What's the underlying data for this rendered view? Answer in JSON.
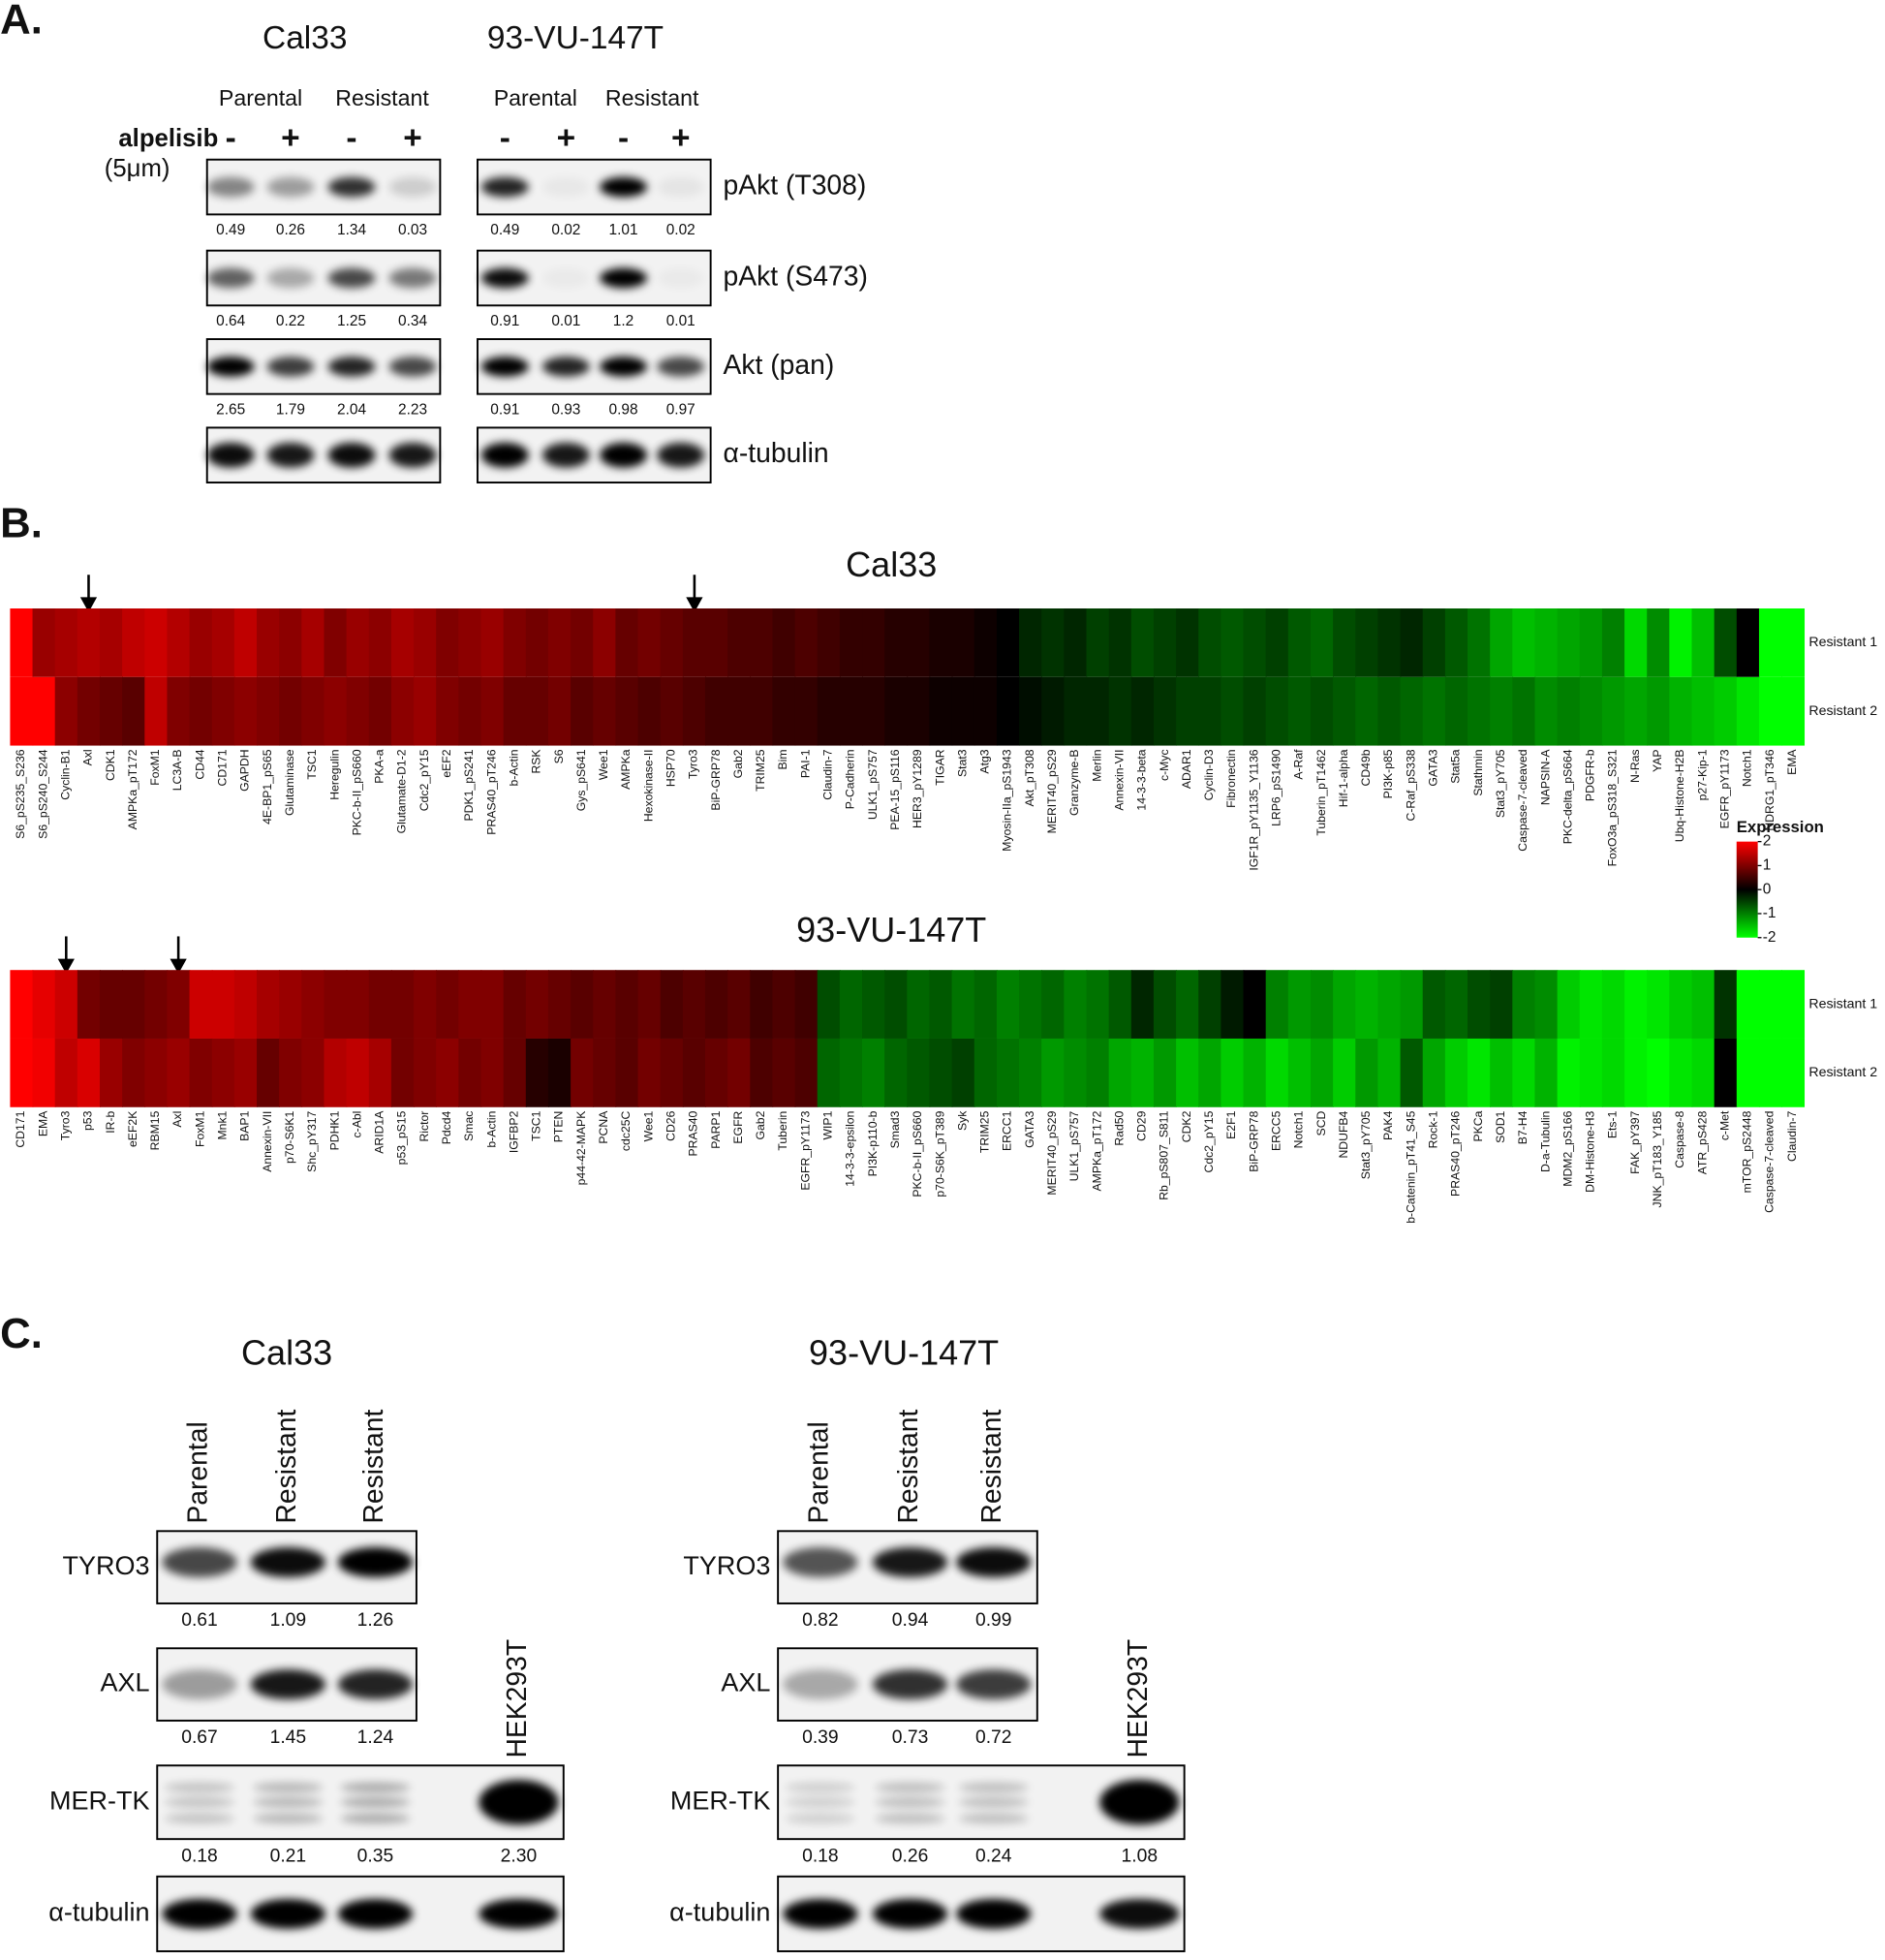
{
  "panel_a": {
    "label": "A.",
    "treatment": "alpelisib",
    "dose": "(5μm)",
    "proteins": [
      "pAkt (T308)",
      "pAkt (S473)",
      "Akt (pan)",
      "α-tubulin"
    ],
    "cell_lines": [
      {
        "name": "Cal33",
        "groups": [
          "Parental",
          "Resistant"
        ],
        "signs": [
          "-",
          "+",
          "-",
          "+"
        ],
        "quantification": [
          [
            "0.49",
            "0.26",
            "1.34",
            "0.03"
          ],
          [
            "0.64",
            "0.22",
            "1.25",
            "0.34"
          ],
          [
            "2.65",
            "1.79",
            "2.04",
            "2.23"
          ]
        ]
      },
      {
        "name": "93-VU-147T",
        "groups": [
          "Parental",
          "Resistant"
        ],
        "signs": [
          "-",
          "+",
          "-",
          "+"
        ],
        "quantification": [
          [
            "0.49",
            "0.02",
            "1.01",
            "0.02"
          ],
          [
            "0.91",
            "0.01",
            "1.2",
            "0.01"
          ],
          [
            "0.91",
            "0.93",
            "0.98",
            "0.97"
          ]
        ]
      }
    ]
  },
  "panel_b": {
    "label": "B.",
    "legend": {
      "title": "Expression",
      "lim": [
        -2,
        2
      ],
      "ticks": [
        2,
        1,
        0,
        -1,
        -2
      ]
    },
    "heatmaps": [
      {
        "title": "Cal33",
        "row_labels": [
          "Resistant 1",
          "Resistant 2"
        ],
        "columns": [
          "S6_pS235_S236",
          "S6_pS240_S244",
          "Cyclin-B1",
          "Axl",
          "CDK1",
          "AMPKa_pT172",
          "FoxM1",
          "LC3A-B",
          "CD44",
          "CD171",
          "GAPDH",
          "4E-BP1_pS65",
          "Glutaminase",
          "TSC1",
          "Heregulin",
          "PKC-b-II_pS660",
          "PKA-a",
          "Glutamate-D1-2",
          "Cdc2_pY15",
          "eEF2",
          "PDK1_pS241",
          "PRAS40_pT246",
          "b-Actin",
          "RSK",
          "S6",
          "Gys_pS641",
          "Wee1",
          "AMPKa",
          "Hexokinase-II",
          "HSP70",
          "Tyro3",
          "BiP-GRP78",
          "Gab2",
          "TRIM25",
          "Bim",
          "PAI-1",
          "Claudin-7",
          "P-Cadherin",
          "ULK1_pS757",
          "PEA-15_pS116",
          "HER3_pY1289",
          "TIGAR",
          "Stat3",
          "Atg3",
          "Myosin-IIa_pS1943",
          "Akt_pT308",
          "MERIT40_pS29",
          "Granzyme-B",
          "Merlin",
          "Annexin-VII",
          "14-3-3-beta",
          "c-Myc",
          "ADAR1",
          "Cyclin-D3",
          "Fibronectin",
          "IGF1R_pY1135_Y1136",
          "LRP6_pS1490",
          "A-Raf",
          "Tuberin_pT1462",
          "Hif-1-alpha",
          "CD49b",
          "PI3K-p85",
          "C-Raf_pS338",
          "GATA3",
          "Stat5a",
          "Stathmin",
          "Stat3_pY705",
          "Caspase-7-cleaved",
          "NAPSIN-A",
          "PKC-delta_pS664",
          "PDGFR-b",
          "FoxO3a_pS318_S321",
          "N-Ras",
          "YAP",
          "Ubq-Histone-H2B",
          "p27-Kip-1",
          "EGFR_pY1173",
          "Notch1",
          "NDRG1_pT346",
          "EMA"
        ],
        "values": [
          [
            2.0,
            1.2,
            1.3,
            1.4,
            1.3,
            1.5,
            1.6,
            1.4,
            1.2,
            1.3,
            1.5,
            1.2,
            1.1,
            1.3,
            1.0,
            1.2,
            1.1,
            1.3,
            1.2,
            1.0,
            1.1,
            1.2,
            1.0,
            0.9,
            1.0,
            0.9,
            1.1,
            0.8,
            0.9,
            0.8,
            0.7,
            0.7,
            0.6,
            0.6,
            0.5,
            0.6,
            0.5,
            0.4,
            0.4,
            0.3,
            0.3,
            0.2,
            0.2,
            0.1,
            0.0,
            -0.3,
            -0.4,
            -0.3,
            -0.5,
            -0.4,
            -0.6,
            -0.5,
            -0.4,
            -0.6,
            -0.7,
            -0.6,
            -0.5,
            -0.7,
            -0.8,
            -0.6,
            -0.5,
            -0.4,
            -0.3,
            -0.5,
            -0.7,
            -0.9,
            -1.3,
            -1.5,
            -1.4,
            -1.3,
            -1.2,
            -1.0,
            -1.7,
            -1.1,
            -1.9,
            -1.5,
            -0.6,
            0.0,
            -2.0,
            -2.0
          ],
          [
            2.0,
            2.0,
            1.1,
            0.9,
            0.8,
            0.7,
            1.5,
            1.0,
            0.9,
            1.0,
            1.1,
            1.0,
            0.9,
            1.0,
            1.1,
            1.0,
            0.9,
            1.1,
            1.2,
            1.0,
            0.9,
            1.0,
            0.8,
            0.8,
            0.9,
            0.7,
            0.8,
            0.7,
            0.6,
            0.7,
            0.6,
            0.5,
            0.5,
            0.5,
            0.4,
            0.4,
            0.3,
            0.3,
            0.3,
            0.2,
            0.2,
            0.1,
            0.1,
            0.1,
            0.0,
            -0.1,
            -0.2,
            -0.3,
            -0.3,
            -0.4,
            -0.3,
            -0.4,
            -0.5,
            -0.5,
            -0.6,
            -0.5,
            -0.6,
            -0.7,
            -0.6,
            -0.7,
            -0.8,
            -0.7,
            -0.8,
            -0.9,
            -0.8,
            -0.9,
            -1.0,
            -0.9,
            -1.1,
            -1.0,
            -1.1,
            -1.2,
            -1.3,
            -1.2,
            -1.4,
            -1.5,
            -1.6,
            -1.8,
            -2.0,
            -2.0
          ]
        ]
      },
      {
        "title": "93-VU-147T",
        "row_labels": [
          "Resistant 1",
          "Resistant 2"
        ],
        "columns": [
          "CD171",
          "EMA",
          "Tyro3",
          "p53",
          "IR-b",
          "eEF2K",
          "RBM15",
          "Axl",
          "FoxM1",
          "Mnk1",
          "BAP1",
          "Annexin-VII",
          "p70-S6K1",
          "Shc_pY317",
          "PDHK1",
          "c-Abl",
          "ARID1A",
          "p53_pS15",
          "Rictor",
          "Pdcd4",
          "Smac",
          "b-Actin",
          "IGFBP2",
          "TSC1",
          "PTEN",
          "p44-42-MAPK",
          "PCNA",
          "cdc25C",
          "Wee1",
          "CD26",
          "PRAS40",
          "PARP1",
          "EGFR",
          "Gab2",
          "Tuberin",
          "EGFR_pY1173",
          "WIP1",
          "14-3-3-epsilon",
          "PI3K-p110-b",
          "Smad3",
          "PKC-b-II_pS660",
          "p70-S6K_pT389",
          "Syk",
          "TRIM25",
          "ERCC1",
          "GATA3",
          "MERIT40_pS29",
          "ULK1_pS757",
          "AMPKa_pT172",
          "Rad50",
          "CD29",
          "Rb_pS807_S811",
          "CDK2",
          "Cdc2_pY15",
          "E2F1",
          "BiP-GRP78",
          "ERCC5",
          "Notch1",
          "SCD",
          "NDUFB4",
          "Stat3_pY705",
          "PAK4",
          "b-Catenin_pT41_S45",
          "Rock-1",
          "PRAS40_pT246",
          "PKCa",
          "SOD1",
          "B7-H4",
          "D-a-Tubulin",
          "MDM2_pS166",
          "DM-Histone-H3",
          "Ets-1",
          "FAK_pY397",
          "JNK_pT183_Y185",
          "Caspase-8",
          "ATR_pS428",
          "c-Met",
          "mTOR_pS2448",
          "Caspase-7-cleaved",
          "Claudin-7"
        ],
        "values": [
          [
            2.0,
            1.8,
            1.6,
            0.9,
            0.8,
            0.8,
            0.9,
            1.0,
            1.6,
            1.6,
            1.5,
            1.3,
            1.2,
            1.1,
            1.0,
            1.0,
            0.9,
            0.9,
            1.0,
            0.9,
            1.0,
            1.0,
            0.8,
            0.9,
            0.8,
            0.7,
            0.8,
            0.7,
            0.8,
            0.6,
            0.7,
            0.6,
            0.7,
            0.5,
            0.6,
            0.5,
            -0.6,
            -0.8,
            -0.7,
            -0.6,
            -0.8,
            -0.7,
            -0.9,
            -0.8,
            -1.0,
            -0.9,
            -0.8,
            -1.0,
            -0.9,
            -0.7,
            -0.3,
            -0.6,
            -0.8,
            -0.5,
            -0.2,
            0.0,
            -1.0,
            -1.2,
            -1.1,
            -1.3,
            -1.4,
            -1.3,
            -1.2,
            -0.7,
            -0.8,
            -0.6,
            -0.5,
            -1.0,
            -1.1,
            -1.6,
            -1.8,
            -1.7,
            -1.9,
            -1.8,
            -1.6,
            -1.5,
            -0.4,
            -2.0,
            -2.0,
            -2.0
          ],
          [
            2.0,
            1.9,
            1.5,
            1.7,
            1.2,
            1.0,
            1.1,
            1.2,
            1.0,
            1.1,
            1.2,
            0.8,
            1.0,
            1.1,
            1.4,
            1.5,
            1.3,
            0.9,
            1.0,
            1.1,
            0.9,
            1.0,
            0.8,
            0.3,
            0.2,
            0.9,
            0.8,
            0.7,
            0.9,
            0.8,
            0.7,
            0.8,
            0.9,
            0.6,
            0.7,
            0.6,
            -0.8,
            -0.9,
            -1.0,
            -0.8,
            -0.7,
            -0.6,
            -0.5,
            -0.8,
            -0.9,
            -1.0,
            -1.2,
            -1.1,
            -1.0,
            -1.3,
            -1.4,
            -1.2,
            -1.5,
            -1.3,
            -1.6,
            -1.4,
            -1.7,
            -1.5,
            -1.3,
            -1.6,
            -1.2,
            -1.4,
            -0.7,
            -1.3,
            -1.6,
            -1.8,
            -1.5,
            -1.7,
            -1.4,
            -1.9,
            -1.8,
            -1.7,
            -1.9,
            -2.0,
            -1.8,
            -1.7,
            0.0,
            -2.0,
            -2.0,
            -2.0
          ]
        ]
      }
    ]
  },
  "panel_c": {
    "label": "C.",
    "cell_lines": [
      {
        "name": "Cal33",
        "lanes": [
          "Parental",
          "Resistant",
          "Resistant"
        ],
        "control": "HEK293T",
        "proteins": [
          "TYRO3",
          "AXL",
          "MER-TK",
          "α-tubulin"
        ],
        "quantification": [
          [
            "0.61",
            "1.09",
            "1.26"
          ],
          [
            "0.67",
            "1.45",
            "1.24"
          ],
          [
            "0.18",
            "0.21",
            "0.35",
            "2.30"
          ]
        ]
      },
      {
        "name": "93-VU-147T",
        "lanes": [
          "Parental",
          "Resistant",
          "Resistant"
        ],
        "control": "HEK293T",
        "proteins": [
          "TYRO3",
          "AXL",
          "MER-TK",
          "α-tubulin"
        ],
        "quantification": [
          [
            "0.82",
            "0.94",
            "0.99"
          ],
          [
            "0.39",
            "0.73",
            "0.72"
          ],
          [
            "0.18",
            "0.26",
            "0.24",
            "1.08"
          ]
        ]
      }
    ]
  }
}
